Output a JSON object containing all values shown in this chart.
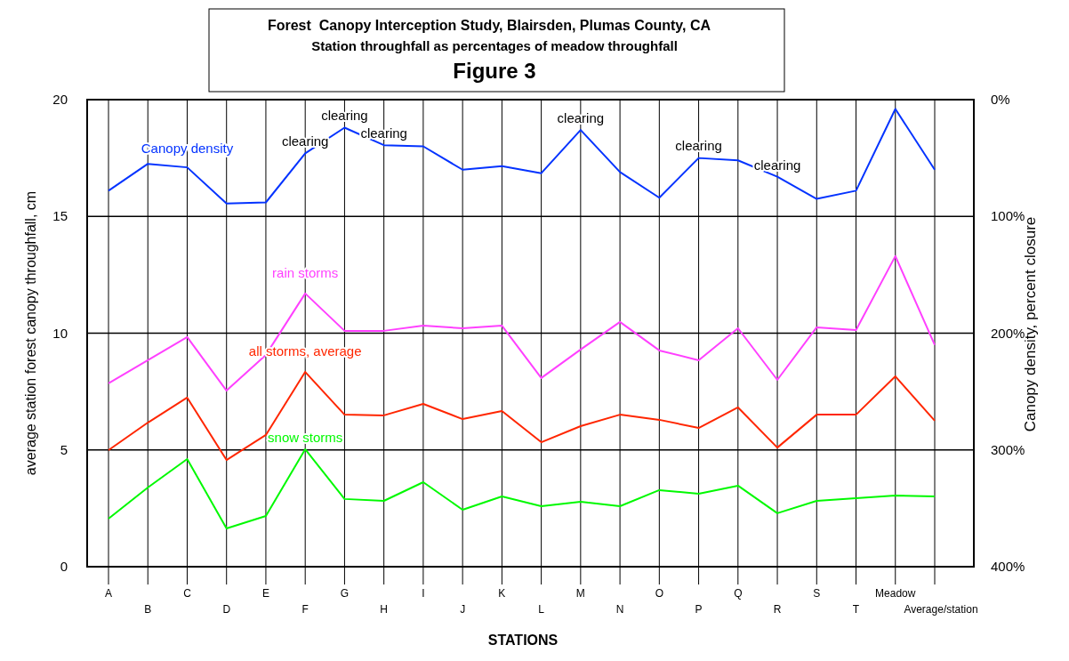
{
  "chart_data": {
    "type": "line",
    "title": "Forest  Canopy Interception Study, Blairsden, Plumas County, CA",
    "subtitle": "Station throughfall as percentages of meadow throughfall",
    "xlabel": "STATIONS",
    "ylabel": "average station forest canopy throughfall, cm",
    "y2label": "Canopy density, percent closure",
    "categories": [
      "A",
      "B",
      "C",
      "D",
      "E",
      "F",
      "G",
      "H",
      "I",
      "J",
      "K",
      "L",
      "M",
      "N",
      "O",
      "P",
      "Q",
      "R",
      "S",
      "T",
      "Meadow",
      "Average/station"
    ],
    "series": [
      {
        "name": "Canopy density",
        "color": "#0433ff",
        "axis": "y2",
        "values": [
          78,
          55,
          58,
          89,
          88,
          46,
          24,
          39,
          40,
          60,
          57,
          63,
          26,
          62,
          84,
          50,
          52,
          66,
          85,
          78,
          8,
          60
        ]
      },
      {
        "name": "rain storms",
        "color": "#ff40ff",
        "values": [
          7.85,
          8.84,
          9.83,
          7.54,
          9.07,
          11.7,
          10.1,
          10.1,
          10.32,
          10.21,
          10.32,
          8.08,
          9.3,
          10.48,
          9.26,
          8.84,
          10.21,
          8.0,
          10.25,
          10.13,
          13.3,
          9.5
        ]
      },
      {
        "name": "all storms, average",
        "color": "#ff2600",
        "values": [
          4.99,
          6.17,
          7.24,
          4.57,
          5.64,
          8.34,
          6.51,
          6.48,
          6.97,
          6.32,
          6.67,
          5.33,
          6.02,
          6.51,
          6.29,
          5.94,
          6.82,
          5.1,
          6.51,
          6.51,
          8.15,
          6.25
        ]
      },
      {
        "name": "snow storms",
        "color": "#00f900",
        "values": [
          2.06,
          3.39,
          4.61,
          1.64,
          2.17,
          5.03,
          2.9,
          2.82,
          3.62,
          2.44,
          3.01,
          2.59,
          2.78,
          2.59,
          3.28,
          3.12,
          3.47,
          2.29,
          2.82,
          2.93,
          3.05,
          3.01
        ]
      }
    ],
    "ylim": [
      0,
      20
    ],
    "yticks": [
      0,
      5,
      10,
      15,
      20
    ],
    "y2lim": [
      400,
      0
    ],
    "y2ticks": [
      {
        "value": 0,
        "label": "0%"
      },
      {
        "value": 100,
        "label": "100%"
      },
      {
        "value": 200,
        "label": "200%"
      },
      {
        "value": 300,
        "label": "300%"
      },
      {
        "value": 400,
        "label": "400%"
      }
    ],
    "grid": true,
    "marker": "none",
    "line_style": "solid",
    "annotations": [
      "Figure 3",
      {
        "text": "clearing",
        "x": "F",
        "y": 17.71
      },
      {
        "text": "clearing",
        "x": "G",
        "y": 18.82
      },
      {
        "text": "clearing",
        "x": "H",
        "y": 18.06
      },
      {
        "text": "clearing",
        "x": "M",
        "y": 18.7
      },
      {
        "text": "clearing",
        "x": "P",
        "y": 17.52
      },
      {
        "text": "clearing",
        "x": "R",
        "y": 16.69
      }
    ]
  }
}
